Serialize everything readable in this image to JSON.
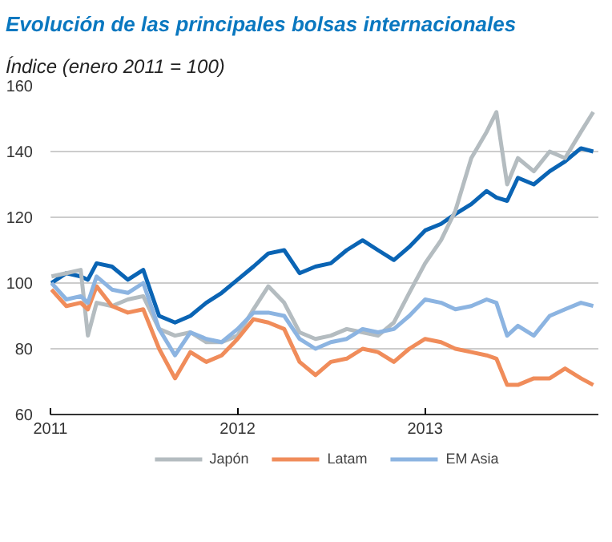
{
  "chart_data": {
    "type": "line",
    "title": "Evolución de las principales bolsas internacionales",
    "subtitle": "Índice (enero 2011 = 100)",
    "x": [
      "2011-01-03",
      "2011-02-01",
      "2011-03-01",
      "2011-03-15",
      "2011-04-01",
      "2011-05-01",
      "2011-06-01",
      "2011-07-01",
      "2011-08-01",
      "2011-09-01",
      "2011-10-01",
      "2011-11-01",
      "2011-12-01",
      "2012-01-01",
      "2012-02-01",
      "2012-03-01",
      "2012-04-01",
      "2012-05-01",
      "2012-06-01",
      "2012-07-01",
      "2012-08-01",
      "2012-09-01",
      "2012-10-01",
      "2012-11-01",
      "2012-12-01",
      "2013-01-01",
      "2013-02-01",
      "2013-03-01",
      "2013-04-01",
      "2013-05-01",
      "2013-05-20",
      "2013-06-10",
      "2013-07-01",
      "2013-08-01",
      "2013-09-01",
      "2013-10-01",
      "2013-11-01",
      "2013-11-25"
    ],
    "xlim": [
      "2011-01-01",
      "2013-12-05"
    ],
    "xticks": [
      {
        "value": "2011-01-01",
        "label": "2011"
      },
      {
        "value": "2012-01-01",
        "label": "2012"
      },
      {
        "value": "2013-01-01",
        "label": "2013"
      }
    ],
    "ylim": [
      60,
      160
    ],
    "yticks": [
      60,
      80,
      100,
      120,
      140,
      160
    ],
    "grid": "y",
    "legend": "bottom",
    "series": [
      {
        "color": "#0a64b4",
        "values": [
          100,
          103,
          102,
          101,
          106,
          105,
          101,
          104,
          90,
          88,
          90,
          94,
          97,
          101,
          105,
          109,
          110,
          103,
          105,
          106,
          110,
          113,
          110,
          107,
          111,
          116,
          118,
          121,
          124,
          128,
          126,
          125,
          132,
          130,
          134,
          137,
          141,
          140
        ]
      },
      {
        "name": "Japón",
        "color": "#b4bcc0",
        "values": [
          102,
          103,
          104,
          84,
          94,
          93,
          95,
          96,
          86,
          84,
          85,
          82,
          82,
          84,
          92,
          99,
          94,
          85,
          83,
          84,
          86,
          85,
          84,
          88,
          97,
          106,
          113,
          122,
          138,
          146,
          152,
          130,
          138,
          134,
          140,
          138,
          146,
          152
        ]
      },
      {
        "name": "Latam",
        "color": "#f08c5a",
        "values": [
          98,
          93,
          94,
          92,
          99,
          93,
          91,
          92,
          80,
          71,
          79,
          76,
          78,
          83,
          89,
          88,
          86,
          76,
          72,
          76,
          77,
          80,
          79,
          76,
          80,
          83,
          82,
          80,
          79,
          78,
          77,
          69,
          69,
          71,
          71,
          74,
          71,
          69
        ]
      },
      {
        "name": "EM Asia",
        "color": "#8cb4e1",
        "values": [
          100,
          95,
          96,
          94,
          102,
          98,
          97,
          100,
          86,
          78,
          85,
          83,
          82,
          86,
          91,
          91,
          90,
          83,
          80,
          82,
          83,
          86,
          85,
          86,
          90,
          95,
          94,
          92,
          93,
          95,
          94,
          84,
          87,
          84,
          90,
          92,
          94,
          93
        ]
      }
    ]
  }
}
